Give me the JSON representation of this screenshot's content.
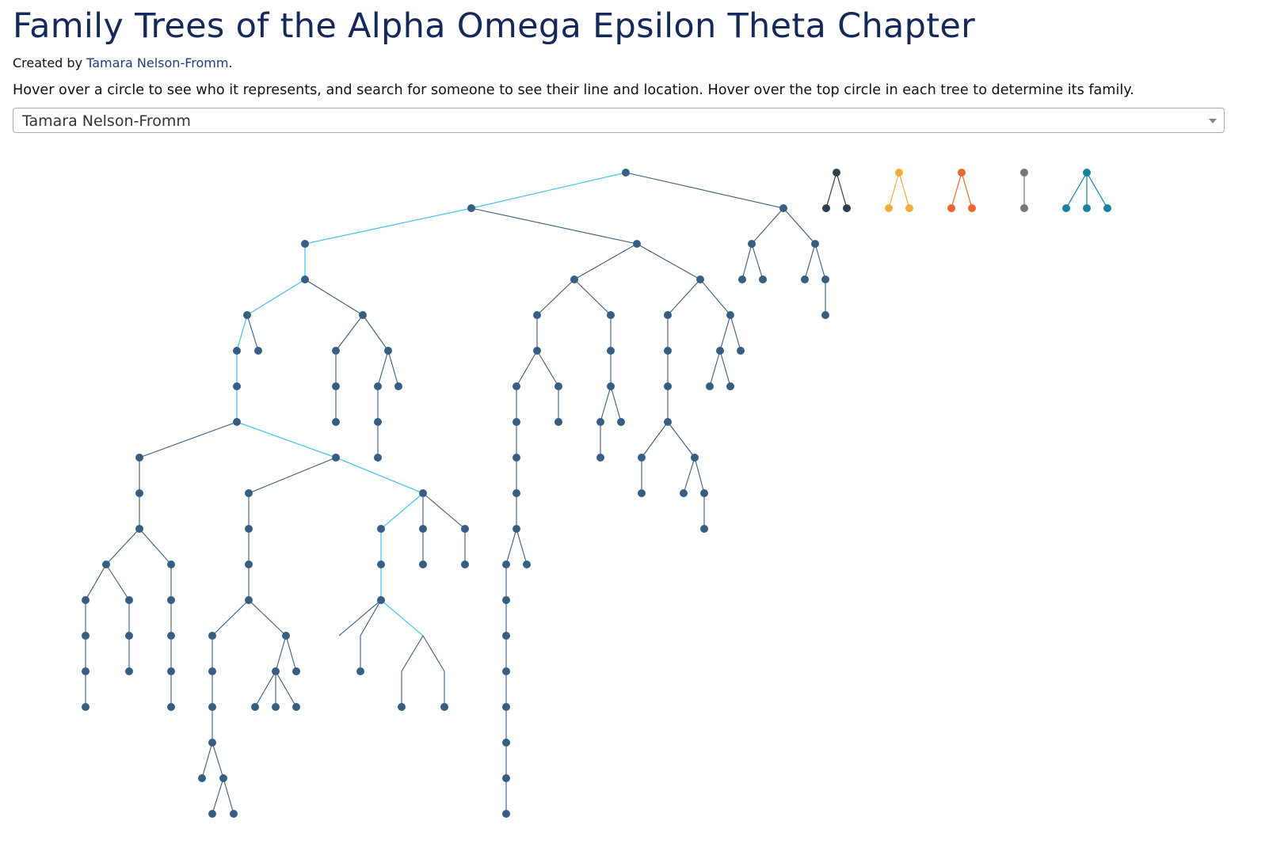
{
  "header": {
    "title": "Family Trees of the Alpha Omega Epsilon Theta Chapter",
    "credit_prefix": "Created by",
    "credit_name": "Tamara Nelson-Fromm",
    "credit_suffix": ".",
    "instructions": "Hover over a circle to see who it represents, and search for someone to see their line and location. Hover over the top circle in each tree to determine its family."
  },
  "search": {
    "selected": "Tamara Nelson-Fromm"
  },
  "colors": {
    "node": "#355e82",
    "link": "#3a5a78",
    "highlight": "#4fc3ef",
    "family_colors": [
      "#2d3e50",
      "#f4ad3a",
      "#eb6631",
      "#777777",
      "#15839f"
    ]
  },
  "family_trees": [
    {
      "color": "#2d3e50",
      "children": 2
    },
    {
      "color": "#f4ad3a",
      "children": 2
    },
    {
      "color": "#eb6631",
      "children": 2
    },
    {
      "color": "#777777",
      "children": 1
    },
    {
      "color": "#15839f",
      "children": 3
    }
  ]
}
